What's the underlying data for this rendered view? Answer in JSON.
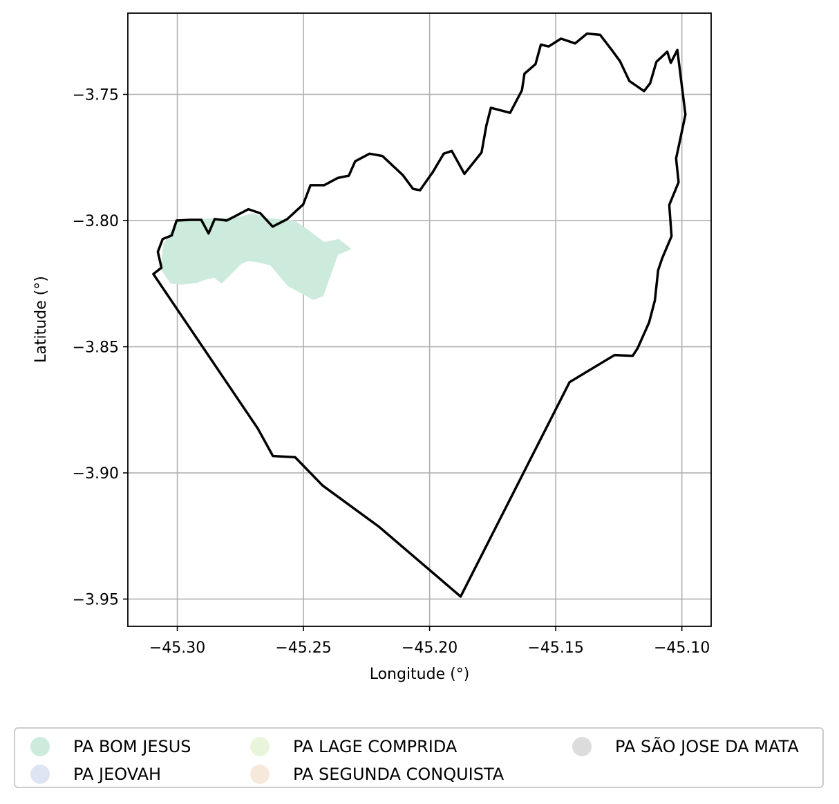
{
  "chart_data": {
    "type": "map",
    "xlabel": "Longitude (°)",
    "ylabel": "Latitude (°)",
    "xlim": [
      -45.3196,
      -45.0884
    ],
    "ylim": [
      -3.9608,
      -3.7178
    ],
    "grid": true,
    "x_ticks": [
      {
        "value": -45.3,
        "label": "−45.30"
      },
      {
        "value": -45.25,
        "label": "−45.25"
      },
      {
        "value": -45.2,
        "label": "−45.20"
      },
      {
        "value": -45.15,
        "label": "−45.15"
      },
      {
        "value": -45.1,
        "label": "−45.10"
      }
    ],
    "y_ticks": [
      {
        "value": -3.75,
        "label": "−3.75"
      },
      {
        "value": -3.8,
        "label": "−3.80"
      },
      {
        "value": -3.85,
        "label": "−3.85"
      },
      {
        "value": -3.9,
        "label": "−3.90"
      },
      {
        "value": -3.95,
        "label": "−3.95"
      }
    ],
    "boundary": {
      "color": "#000000",
      "coords": [
        [
          -45.3095,
          -3.8212
        ],
        [
          -45.3063,
          -3.8187
        ],
        [
          -45.3077,
          -3.8124
        ],
        [
          -45.3058,
          -3.8073
        ],
        [
          -45.3022,
          -3.8059
        ],
        [
          -45.3003,
          -3.8
        ],
        [
          -45.2948,
          -3.7997
        ],
        [
          -45.2905,
          -3.7997
        ],
        [
          -45.2876,
          -3.8051
        ],
        [
          -45.2852,
          -3.7994
        ],
        [
          -45.2804,
          -3.8
        ],
        [
          -45.2779,
          -3.7987
        ],
        [
          -45.2718,
          -3.7955
        ],
        [
          -45.2671,
          -3.7971
        ],
        [
          -45.2622,
          -3.8024
        ],
        [
          -45.2564,
          -3.7994
        ],
        [
          -45.2501,
          -3.7936
        ],
        [
          -45.2472,
          -3.786
        ],
        [
          -45.2418,
          -3.786
        ],
        [
          -45.2364,
          -3.7831
        ],
        [
          -45.232,
          -3.7822
        ],
        [
          -45.2295,
          -3.7765
        ],
        [
          -45.2238,
          -3.7735
        ],
        [
          -45.2187,
          -3.7744
        ],
        [
          -45.2106,
          -3.782
        ],
        [
          -45.2066,
          -3.7874
        ],
        [
          -45.2038,
          -3.788
        ],
        [
          -45.1986,
          -3.7806
        ],
        [
          -45.1944,
          -3.7735
        ],
        [
          -45.1912,
          -3.7724
        ],
        [
          -45.1862,
          -3.7815
        ],
        [
          -45.1794,
          -3.773
        ],
        [
          -45.1775,
          -3.7624
        ],
        [
          -45.1757,
          -3.7553
        ],
        [
          -45.1681,
          -3.7573
        ],
        [
          -45.1634,
          -3.7484
        ],
        [
          -45.1624,
          -3.7418
        ],
        [
          -45.158,
          -3.738
        ],
        [
          -45.1559,
          -3.7303
        ],
        [
          -45.1528,
          -3.731
        ],
        [
          -45.1479,
          -3.7279
        ],
        [
          -45.1423,
          -3.7298
        ],
        [
          -45.1376,
          -3.7259
        ],
        [
          -45.1324,
          -3.7264
        ],
        [
          -45.1278,
          -3.7324
        ],
        [
          -45.1245,
          -3.7369
        ],
        [
          -45.1208,
          -3.7447
        ],
        [
          -45.115,
          -3.7487
        ],
        [
          -45.1126,
          -3.7456
        ],
        [
          -45.1101,
          -3.7371
        ],
        [
          -45.1058,
          -3.7331
        ],
        [
          -45.1044,
          -3.7375
        ],
        [
          -45.1018,
          -3.7324
        ],
        [
          -45.0986,
          -3.758
        ],
        [
          -45.1023,
          -3.7754
        ],
        [
          -45.1013,
          -3.7848
        ],
        [
          -45.105,
          -3.7938
        ],
        [
          -45.1041,
          -3.8062
        ],
        [
          -45.1078,
          -3.8149
        ],
        [
          -45.1094,
          -3.8197
        ],
        [
          -45.1107,
          -3.8316
        ],
        [
          -45.113,
          -3.8404
        ],
        [
          -45.1176,
          -3.8507
        ],
        [
          -45.1195,
          -3.8536
        ],
        [
          -45.1267,
          -3.8533
        ],
        [
          -45.1445,
          -3.864
        ],
        [
          -45.1877,
          -3.949
        ],
        [
          -45.2201,
          -3.9213
        ],
        [
          -45.2424,
          -3.905
        ],
        [
          -45.2533,
          -3.8938
        ],
        [
          -45.2621,
          -3.8933
        ],
        [
          -45.2681,
          -3.8824
        ],
        [
          -45.3095,
          -3.8212
        ]
      ]
    },
    "areas": [
      {
        "name": "PA BOM JESUS",
        "color": "#cdebdc",
        "coords": [
          [
            -45.3066,
            -3.8192
          ],
          [
            -45.3027,
            -3.825
          ],
          [
            -45.2981,
            -3.8254
          ],
          [
            -45.2922,
            -3.8247
          ],
          [
            -45.2894,
            -3.8236
          ],
          [
            -45.2854,
            -3.8227
          ],
          [
            -45.2824,
            -3.825
          ],
          [
            -45.2746,
            -3.8172
          ],
          [
            -45.272,
            -3.8161
          ],
          [
            -45.2678,
            -3.8166
          ],
          [
            -45.2631,
            -3.8178
          ],
          [
            -45.2563,
            -3.8259
          ],
          [
            -45.2461,
            -3.8314
          ],
          [
            -45.2422,
            -3.83
          ],
          [
            -45.2363,
            -3.8136
          ],
          [
            -45.2309,
            -3.8113
          ],
          [
            -45.236,
            -3.8073
          ],
          [
            -45.2418,
            -3.8085
          ],
          [
            -45.2482,
            -3.8036
          ],
          [
            -45.2535,
            -3.8
          ],
          [
            -45.2642,
            -3.799
          ],
          [
            -45.2701,
            -3.7971
          ],
          [
            -45.2749,
            -3.7984
          ],
          [
            -45.283,
            -3.799
          ],
          [
            -45.2931,
            -3.7994
          ],
          [
            -45.3009,
            -3.8007
          ],
          [
            -45.3056,
            -3.8095
          ],
          [
            -45.3066,
            -3.8192
          ]
        ]
      }
    ],
    "legend": {
      "placement": "below",
      "entries": [
        {
          "label": "PA BOM JESUS",
          "color": "#cdebdc"
        },
        {
          "label": "PA JEOVAH",
          "color": "#dfe4f2"
        },
        {
          "label": "PA LAGE COMPRIDA",
          "color": "#e9f5db"
        },
        {
          "label": "PA SEGUNDA CONQUISTA",
          "color": "#f6e9db"
        },
        {
          "label": "PA SÃO JOSE DA MATA",
          "color": "#dcdcdc"
        }
      ]
    }
  }
}
